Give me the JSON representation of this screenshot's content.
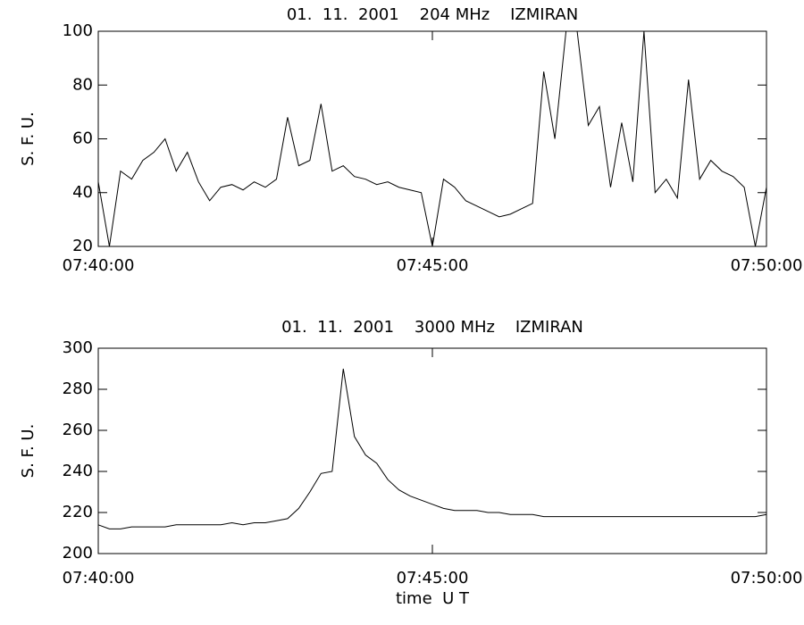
{
  "chart_data": [
    {
      "type": "line",
      "title": "01.  11.  2001    204 MHz    IZMIRAN",
      "ylabel": "S. F. U.",
      "x": [
        "07:40:00",
        "07:40:10",
        "07:40:20",
        "07:40:30",
        "07:40:40",
        "07:40:50",
        "07:41:00",
        "07:41:10",
        "07:41:20",
        "07:41:30",
        "07:41:40",
        "07:41:50",
        "07:42:00",
        "07:42:10",
        "07:42:20",
        "07:42:30",
        "07:42:40",
        "07:42:50",
        "07:43:00",
        "07:43:10",
        "07:43:20",
        "07:43:30",
        "07:43:40",
        "07:43:50",
        "07:44:00",
        "07:44:10",
        "07:44:20",
        "07:44:30",
        "07:44:40",
        "07:44:50",
        "07:45:00",
        "07:45:10",
        "07:45:20",
        "07:45:30",
        "07:45:40",
        "07:45:50",
        "07:46:00",
        "07:46:10",
        "07:46:20",
        "07:46:30",
        "07:46:40",
        "07:46:50",
        "07:47:00",
        "07:47:10",
        "07:47:20",
        "07:47:30",
        "07:47:40",
        "07:47:50",
        "07:48:00",
        "07:48:10",
        "07:48:20",
        "07:48:30",
        "07:48:40",
        "07:48:50",
        "07:49:00",
        "07:49:10",
        "07:49:20",
        "07:49:30",
        "07:49:40",
        "07:49:50",
        "07:50:00"
      ],
      "series": [
        {
          "color": "#000000",
          "values": [
            44,
            20,
            48,
            45,
            52,
            55,
            60,
            48,
            55,
            44,
            37,
            42,
            43,
            41,
            44,
            42,
            45,
            68,
            50,
            52,
            73,
            48,
            50,
            46,
            45,
            43,
            44,
            42,
            41,
            40,
            20,
            45,
            42,
            37,
            35,
            33,
            31,
            32,
            34,
            36,
            85,
            60,
            100,
            100,
            65,
            72,
            42,
            66,
            44,
            100,
            40,
            45,
            38,
            82,
            45,
            52,
            48,
            46,
            42,
            20,
            42
          ]
        }
      ],
      "xlim": [
        "07:40:00",
        "07:50:00"
      ],
      "xticks": [
        "07:40:00",
        "07:45:00",
        "07:50:00"
      ],
      "ylim": [
        20,
        100
      ],
      "yticks": [
        20,
        40,
        60,
        80,
        100
      ]
    },
    {
      "type": "line",
      "title": "01.  11.  2001    3000 MHz    IZMIRAN",
      "ylabel": "S. F. U.",
      "xlabel": "time  U T",
      "x": [
        "07:40:00",
        "07:40:10",
        "07:40:20",
        "07:40:30",
        "07:40:40",
        "07:40:50",
        "07:41:00",
        "07:41:10",
        "07:41:20",
        "07:41:30",
        "07:41:40",
        "07:41:50",
        "07:42:00",
        "07:42:10",
        "07:42:20",
        "07:42:30",
        "07:42:40",
        "07:42:50",
        "07:43:00",
        "07:43:10",
        "07:43:20",
        "07:43:30",
        "07:43:40",
        "07:43:50",
        "07:44:00",
        "07:44:10",
        "07:44:20",
        "07:44:30",
        "07:44:40",
        "07:44:50",
        "07:45:00",
        "07:45:10",
        "07:45:20",
        "07:45:30",
        "07:45:40",
        "07:45:50",
        "07:46:00",
        "07:46:10",
        "07:46:20",
        "07:46:30",
        "07:46:40",
        "07:46:50",
        "07:47:00",
        "07:47:10",
        "07:47:20",
        "07:47:30",
        "07:47:40",
        "07:47:50",
        "07:48:00",
        "07:48:10",
        "07:48:20",
        "07:48:30",
        "07:48:40",
        "07:48:50",
        "07:49:00",
        "07:49:10",
        "07:49:20",
        "07:49:30",
        "07:49:40",
        "07:49:50",
        "07:50:00"
      ],
      "series": [
        {
          "color": "#000000",
          "values": [
            214,
            212,
            212,
            213,
            213,
            213,
            213,
            214,
            214,
            214,
            214,
            214,
            215,
            214,
            215,
            215,
            216,
            217,
            222,
            230,
            239,
            240,
            290,
            257,
            248,
            244,
            236,
            231,
            228,
            226,
            224,
            222,
            221,
            221,
            221,
            220,
            220,
            219,
            219,
            219,
            218,
            218,
            218,
            218,
            218,
            218,
            218,
            218,
            218,
            218,
            218,
            218,
            218,
            218,
            218,
            218,
            218,
            218,
            218,
            218,
            219
          ]
        }
      ],
      "xlim": [
        "07:40:00",
        "07:50:00"
      ],
      "xticks": [
        "07:40:00",
        "07:45:00",
        "07:50:00"
      ],
      "ylim": [
        200,
        300
      ],
      "yticks": [
        200,
        220,
        240,
        260,
        280,
        300
      ]
    }
  ]
}
